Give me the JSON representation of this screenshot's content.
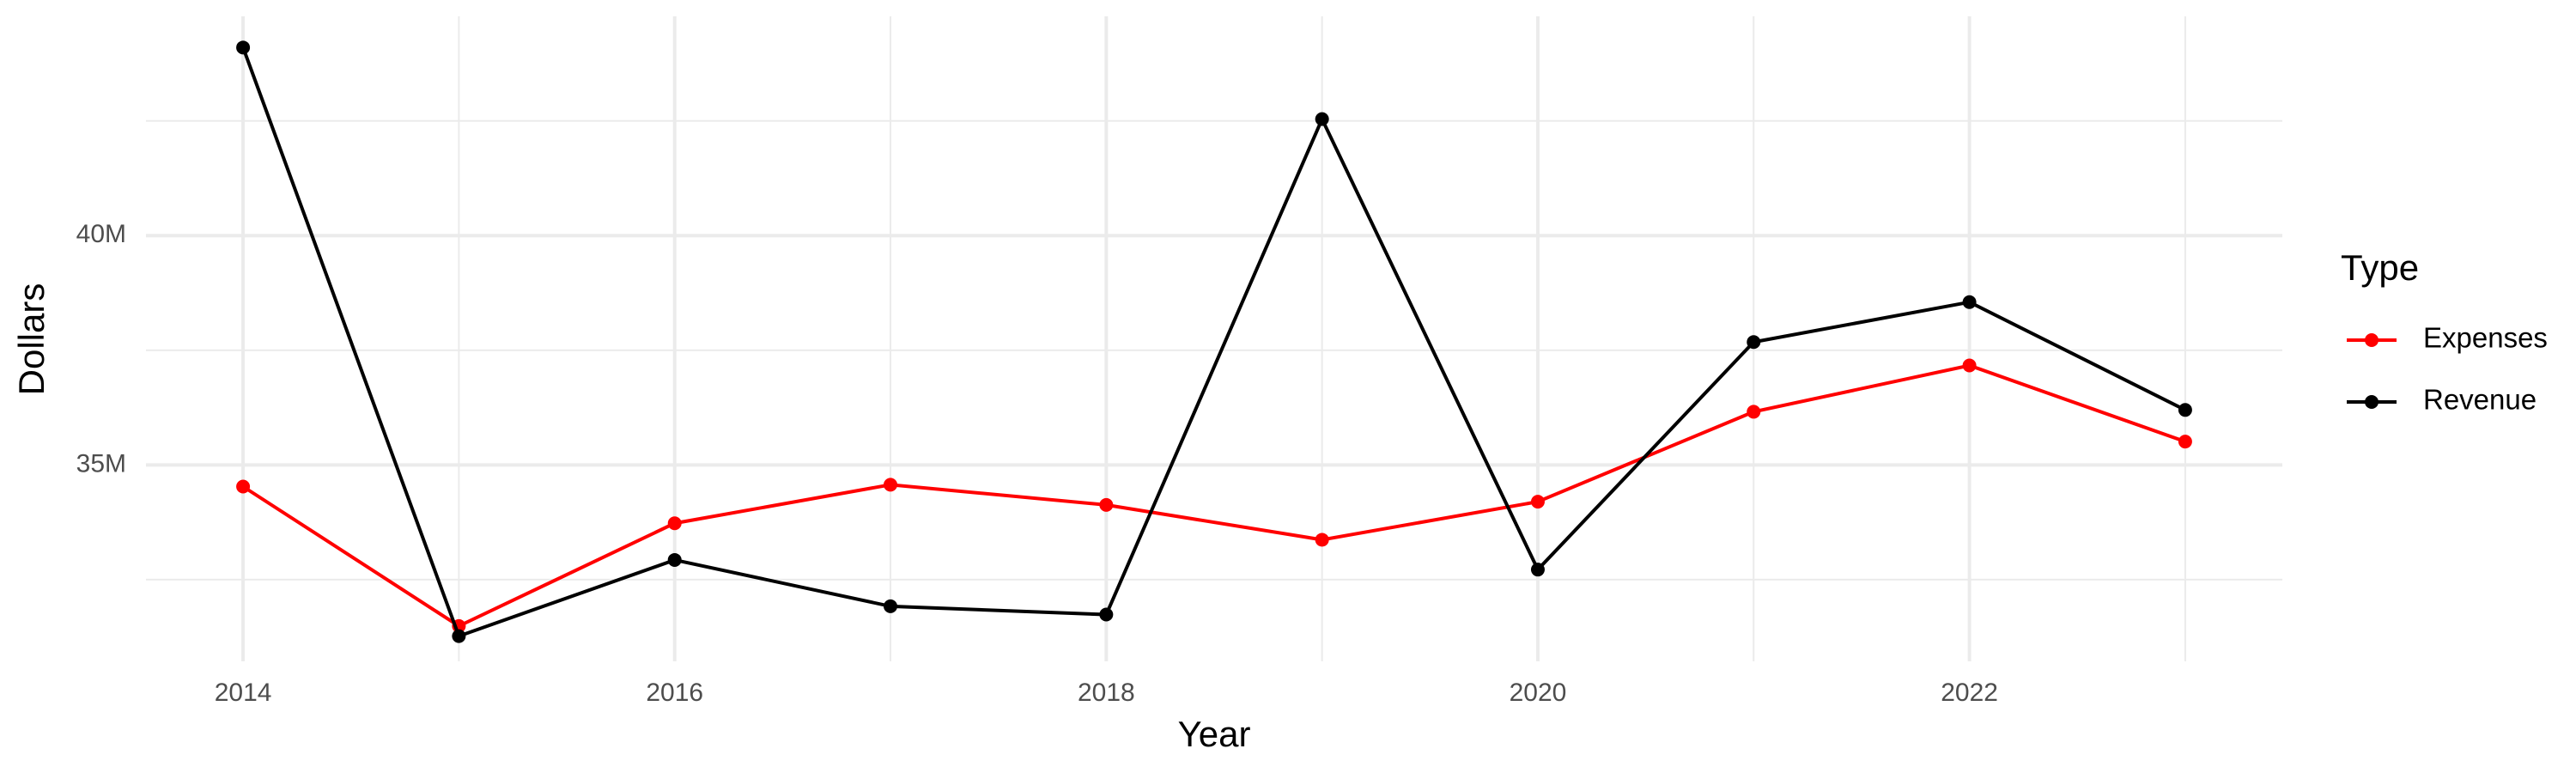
{
  "chart_data": {
    "type": "line",
    "x_label": "Year",
    "y_label": "Dollars",
    "legend_title": "Type",
    "legend_position": "right",
    "grid": true,
    "x": [
      2014,
      2015,
      2016,
      2017,
      2018,
      2019,
      2020,
      2021,
      2022,
      2023
    ],
    "series": [
      {
        "name": "Expenses",
        "color": "#ff0000",
        "values": [
          34530000,
          31490000,
          33730000,
          34570000,
          34130000,
          33370000,
          34200000,
          36160000,
          37170000,
          35510000
        ]
      },
      {
        "name": "Revenue",
        "color": "#000000",
        "values": [
          44100000,
          31270000,
          32930000,
          31920000,
          31740000,
          42540000,
          32720000,
          37680000,
          38550000,
          36200000
        ]
      }
    ],
    "xlim": [
      2013.55,
      2023.45
    ],
    "ylim": [
      30720000,
      44780000
    ],
    "xticks": [
      2014,
      2016,
      2018,
      2020,
      2022
    ],
    "yticks": [
      {
        "value": 35000000,
        "label": "35M"
      },
      {
        "value": 40000000,
        "label": "40M"
      }
    ],
    "xminor": [
      2015,
      2017,
      2019,
      2021,
      2023
    ],
    "yminor": [
      32500000,
      37500000,
      42500000
    ]
  }
}
